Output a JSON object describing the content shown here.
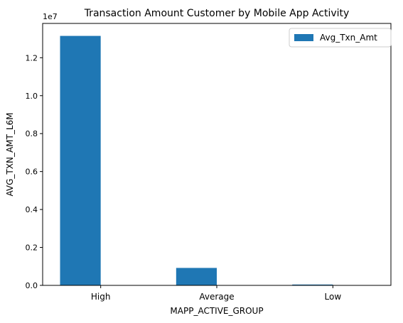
{
  "chart_data": {
    "type": "bar",
    "title": "Transaction Amount Customer by Mobile App Activity",
    "xlabel": "MAPP_ACTIVE_GROUP",
    "ylabel": "AVG_TXN_AMT_L6M",
    "categories": [
      "High",
      "Average",
      "Low"
    ],
    "series": [
      {
        "name": "Avg_Txn_Amt",
        "values": [
          13150000,
          920000,
          45000
        ],
        "color": "#1f77b4"
      }
    ],
    "ylim": [
      0,
      13807500
    ],
    "yticks": [
      0,
      2000000,
      4000000,
      6000000,
      8000000,
      10000000,
      12000000
    ],
    "ytick_labels": [
      "0.0",
      "0.2",
      "0.4",
      "0.6",
      "0.8",
      "1.0",
      "1.2"
    ],
    "y_offset_label": "1e7",
    "grid": false,
    "legend": "top-right"
  }
}
